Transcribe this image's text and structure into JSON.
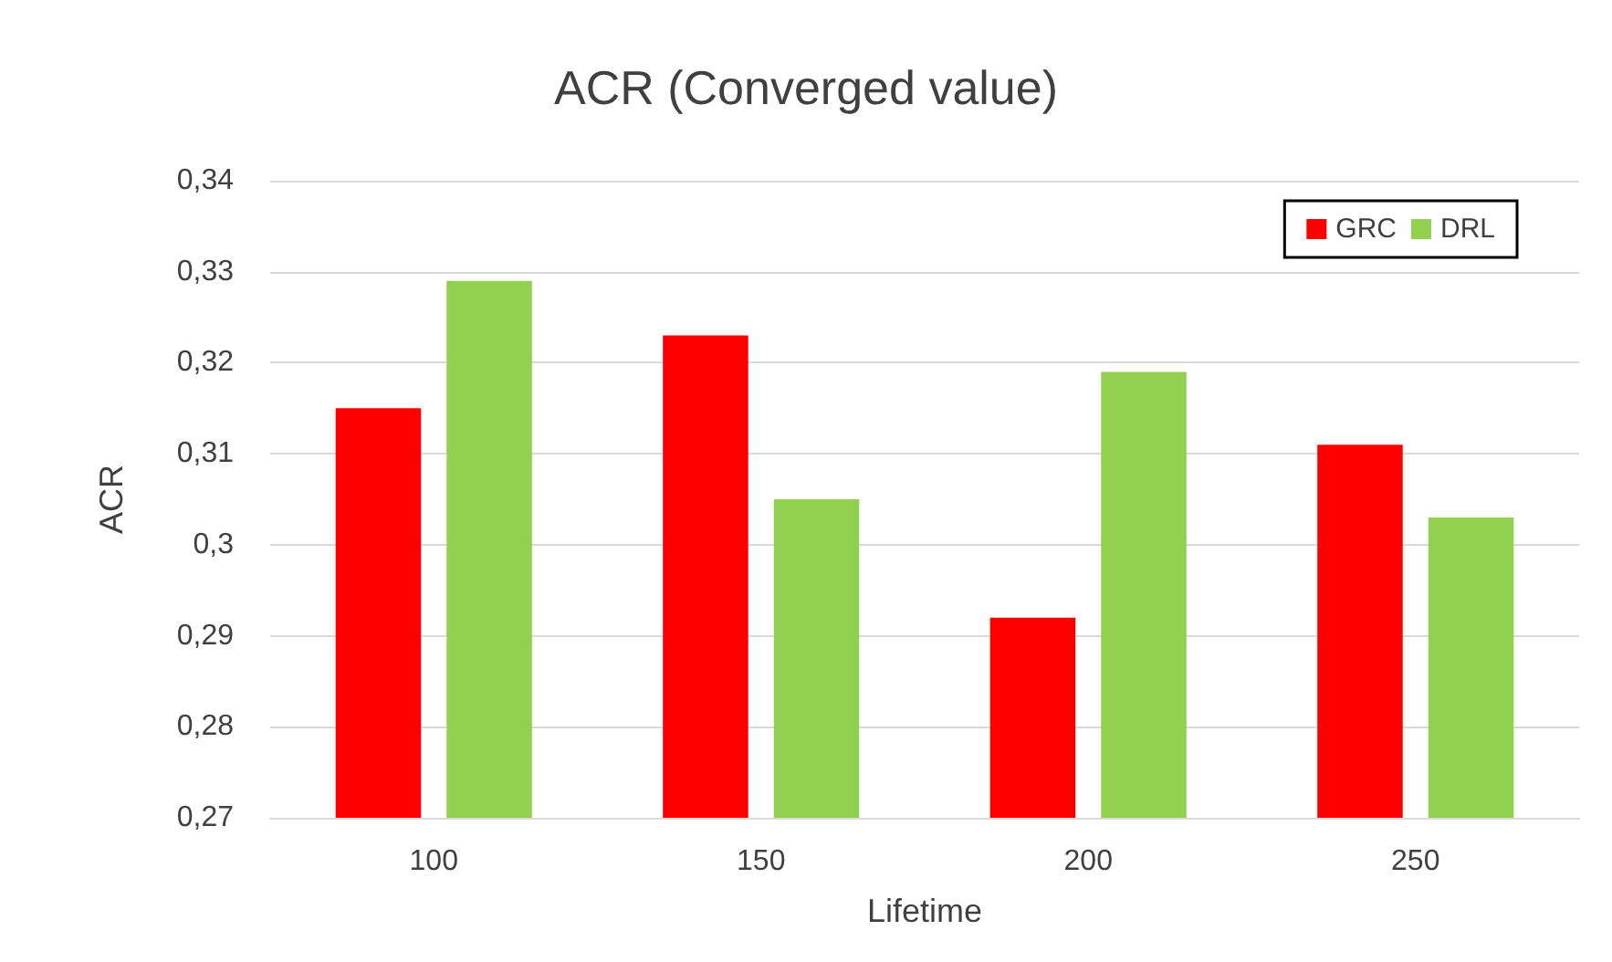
{
  "chart_data": {
    "type": "bar",
    "title": "ACR (Converged value)",
    "xlabel": "Lifetime",
    "ylabel": "ACR",
    "categories": [
      "100",
      "150",
      "200",
      "250"
    ],
    "series": [
      {
        "name": "GRC",
        "color": "#ff0000",
        "values": [
          0.315,
          0.323,
          0.292,
          0.311
        ]
      },
      {
        "name": "DRL",
        "color": "#92d050",
        "values": [
          0.329,
          0.305,
          0.319,
          0.303
        ]
      }
    ],
    "ylim": [
      0.27,
      0.34
    ],
    "yticks": [
      {
        "value": 0.27,
        "label": "0,27"
      },
      {
        "value": 0.28,
        "label": "0,28"
      },
      {
        "value": 0.29,
        "label": "0,29"
      },
      {
        "value": 0.3,
        "label": "0,3"
      },
      {
        "value": 0.31,
        "label": "0,31"
      },
      {
        "value": 0.32,
        "label": "0,32"
      },
      {
        "value": 0.33,
        "label": "0,33"
      },
      {
        "value": 0.34,
        "label": "0,34"
      }
    ],
    "grid": "y",
    "legend": "top right"
  }
}
